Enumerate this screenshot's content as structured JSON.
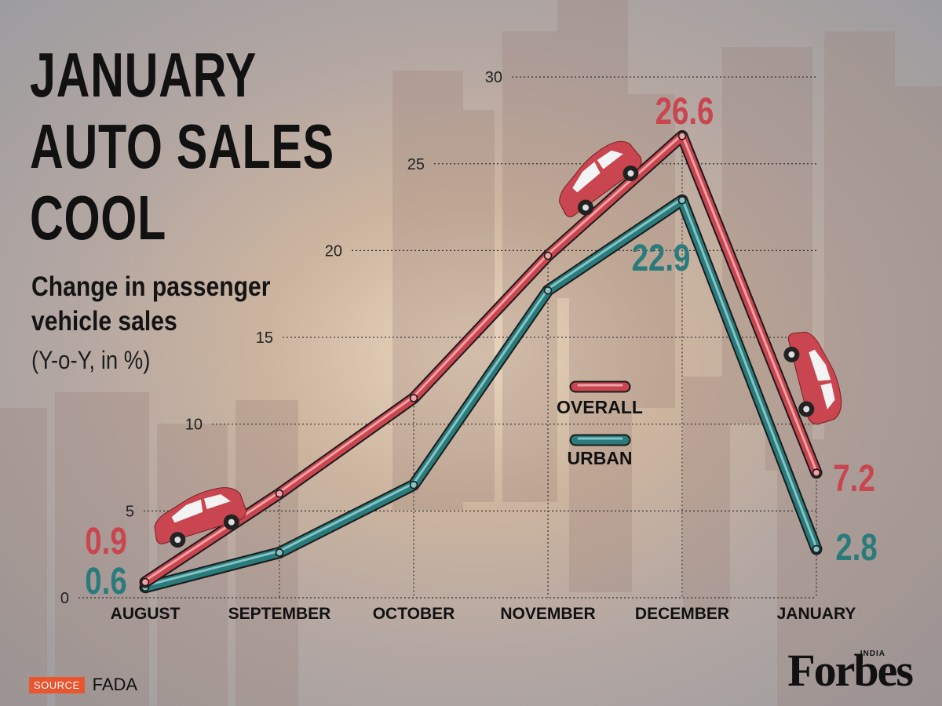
{
  "title": "JANUARY\nAUTO SALES\nCOOL",
  "subtitle": "Change in passenger\nvehicle sales",
  "units": "(Y-o-Y, in %)",
  "source": {
    "label": "SOURCE",
    "name": "FADA"
  },
  "brand": {
    "name": "Forbes",
    "edition": "INDIA"
  },
  "colors": {
    "overall": "#c9454f",
    "urban": "#2a7b7c",
    "overall_light": "#f0a2a6",
    "urban_light": "#86c3c4",
    "text": "#111111"
  },
  "chart_data": {
    "type": "line",
    "categories": [
      "AUGUST",
      "SEPTEMBER",
      "OCTOBER",
      "NOVEMBER",
      "DECEMBER",
      "JANUARY"
    ],
    "series": [
      {
        "name": "OVERALL",
        "values": [
          0.9,
          6.0,
          11.5,
          19.7,
          26.6,
          7.2
        ]
      },
      {
        "name": "URBAN",
        "values": [
          0.6,
          2.6,
          6.5,
          17.7,
          22.9,
          2.8
        ]
      }
    ],
    "data_labels": [
      {
        "series": "OVERALL",
        "category": "AUGUST",
        "text": "0.9"
      },
      {
        "series": "URBAN",
        "category": "AUGUST",
        "text": "0.6"
      },
      {
        "series": "OVERALL",
        "category": "DECEMBER",
        "text": "26.6"
      },
      {
        "series": "URBAN",
        "category": "DECEMBER",
        "text": "22.9"
      },
      {
        "series": "OVERALL",
        "category": "JANUARY",
        "text": "7.2"
      },
      {
        "series": "URBAN",
        "category": "JANUARY",
        "text": "2.8"
      }
    ],
    "yticks": [
      0,
      5,
      10,
      15,
      20,
      25,
      30
    ],
    "ylim": [
      0,
      30
    ],
    "grid": true,
    "legend": "center-right"
  }
}
